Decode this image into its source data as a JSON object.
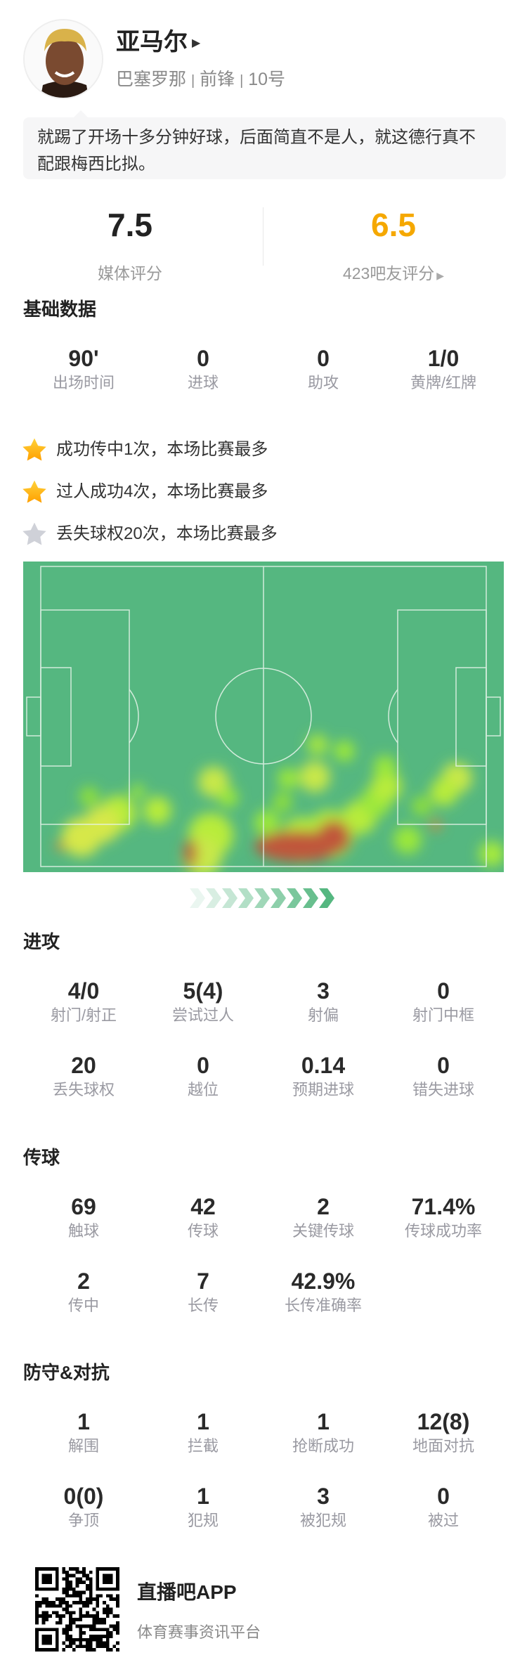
{
  "player": {
    "name": "亚马尔",
    "team": "巴塞罗那",
    "position": "前锋",
    "number": "10号",
    "sep": "|"
  },
  "comment": "就踢了开场十多分钟好球，后面简直不是人，就这德行真不配跟梅西比拟。",
  "ratings": {
    "media": {
      "value": "7.5",
      "label": "媒体评分",
      "color": "#222222"
    },
    "fans": {
      "value": "6.5",
      "label": "423吧友评分",
      "color": "#f5a800"
    }
  },
  "basic": {
    "title": "基础数据",
    "stats": [
      {
        "value": "90'",
        "label": "出场时间"
      },
      {
        "value": "0",
        "label": "进球"
      },
      {
        "value": "0",
        "label": "助攻"
      },
      {
        "value": "1/0",
        "label": "黄牌/红牌"
      }
    ]
  },
  "highlights": [
    {
      "icon": "star-gold-icon",
      "text": "成功传中1次，本场比赛最多"
    },
    {
      "icon": "star-gold-icon",
      "text": "过人成功4次，本场比赛最多"
    },
    {
      "icon": "star-gray-icon",
      "text": "丢失球权20次，本场比赛最多"
    }
  ],
  "heatmap": {
    "pitch_color": "#55b780",
    "attack_direction": "right"
  },
  "attack": {
    "title": "进攻",
    "stats": [
      {
        "value": "4/0",
        "label": "射门/射正"
      },
      {
        "value": "5(4)",
        "label": "尝试过人"
      },
      {
        "value": "3",
        "label": "射偏"
      },
      {
        "value": "0",
        "label": "射门中框"
      },
      {
        "value": "20",
        "label": "丢失球权"
      },
      {
        "value": "0",
        "label": "越位"
      },
      {
        "value": "0.14",
        "label": "预期进球"
      },
      {
        "value": "0",
        "label": "错失进球"
      }
    ]
  },
  "passing": {
    "title": "传球",
    "stats": [
      {
        "value": "69",
        "label": "触球"
      },
      {
        "value": "42",
        "label": "传球"
      },
      {
        "value": "2",
        "label": "关键传球"
      },
      {
        "value": "71.4%",
        "label": "传球成功率"
      },
      {
        "value": "2",
        "label": "传中"
      },
      {
        "value": "7",
        "label": "长传"
      },
      {
        "value": "42.9%",
        "label": "长传准确率"
      }
    ]
  },
  "defense": {
    "title": "防守&对抗",
    "stats": [
      {
        "value": "1",
        "label": "解围"
      },
      {
        "value": "1",
        "label": "拦截"
      },
      {
        "value": "1",
        "label": "抢断成功"
      },
      {
        "value": "12(8)",
        "label": "地面对抗"
      },
      {
        "value": "0(0)",
        "label": "争顶"
      },
      {
        "value": "1",
        "label": "犯规"
      },
      {
        "value": "3",
        "label": "被犯规"
      },
      {
        "value": "0",
        "label": "被过"
      }
    ]
  },
  "footer": {
    "app": "直播吧APP",
    "tagline": "体育赛事资讯平台"
  }
}
